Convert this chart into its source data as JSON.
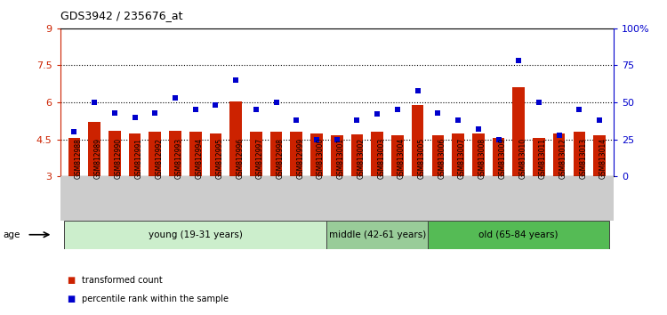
{
  "title": "GDS3942 / 235676_at",
  "samples": [
    "GSM812988",
    "GSM812989",
    "GSM812990",
    "GSM812991",
    "GSM812992",
    "GSM812993",
    "GSM812994",
    "GSM812995",
    "GSM812996",
    "GSM812997",
    "GSM812998",
    "GSM812999",
    "GSM813000",
    "GSM813001",
    "GSM813002",
    "GSM813003",
    "GSM813004",
    "GSM813005",
    "GSM813006",
    "GSM813007",
    "GSM813008",
    "GSM813009",
    "GSM813010",
    "GSM813011",
    "GSM813012",
    "GSM813013",
    "GSM813014"
  ],
  "bar_values": [
    4.55,
    5.2,
    4.85,
    4.75,
    4.8,
    4.85,
    4.8,
    4.75,
    6.05,
    4.8,
    4.8,
    4.8,
    4.75,
    4.65,
    4.7,
    4.8,
    4.65,
    5.9,
    4.65,
    4.75,
    4.75,
    4.55,
    6.6,
    4.55,
    4.75,
    4.8,
    4.65
  ],
  "percentile_values": [
    30,
    50,
    43,
    40,
    43,
    53,
    45,
    48,
    65,
    45,
    50,
    38,
    25,
    25,
    38,
    42,
    45,
    58,
    43,
    38,
    32,
    25,
    78,
    50,
    28,
    45,
    38
  ],
  "bar_color": "#cc2200",
  "dot_color": "#0000cc",
  "ylim_left": [
    3,
    9
  ],
  "ylim_right": [
    0,
    100
  ],
  "yticks_left": [
    3,
    4.5,
    6,
    7.5,
    9
  ],
  "yticks_right": [
    0,
    25,
    50,
    75,
    100
  ],
  "ytick_labels_left": [
    "3",
    "4.5",
    "6",
    "7.5",
    "9"
  ],
  "ytick_labels_right": [
    "0",
    "25",
    "50",
    "75",
    "100%"
  ],
  "groups": [
    {
      "label": "young (19-31 years)",
      "start": 0,
      "end": 13,
      "color": "#cceecc"
    },
    {
      "label": "middle (42-61 years)",
      "start": 13,
      "end": 18,
      "color": "#99cc99"
    },
    {
      "label": "old (65-84 years)",
      "start": 18,
      "end": 27,
      "color": "#55bb55"
    }
  ],
  "age_label": "age",
  "legend": [
    {
      "label": "transformed count",
      "color": "#cc2200"
    },
    {
      "label": "percentile rank within the sample",
      "color": "#0000cc"
    }
  ],
  "xlabel_color": "#cc2200",
  "ylabel_right_color": "#0000cc",
  "background_color": "#ffffff",
  "ticklabel_bg_color": "#cccccc"
}
